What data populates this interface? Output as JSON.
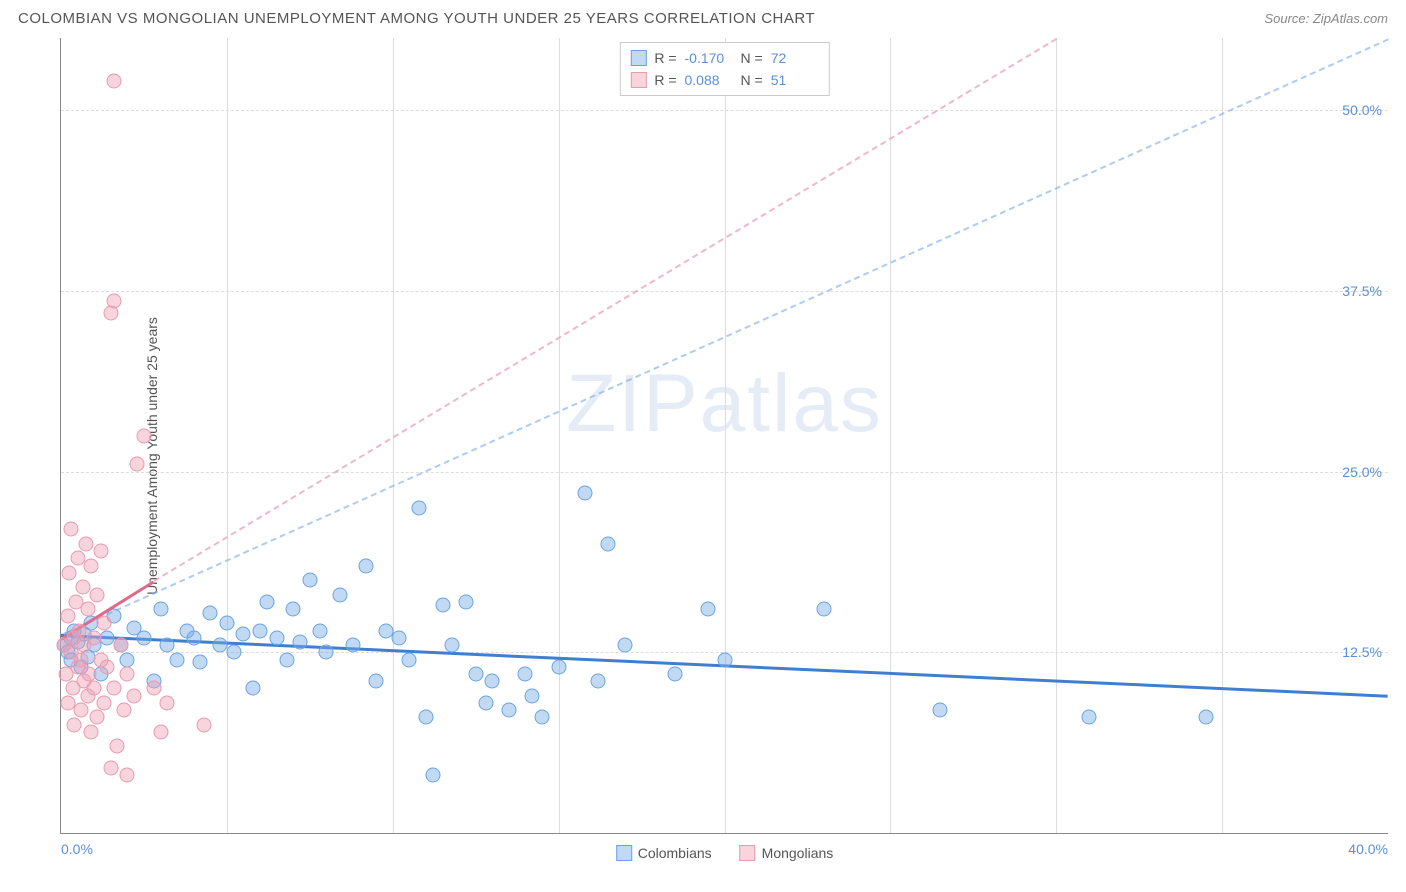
{
  "header": {
    "title": "COLOMBIAN VS MONGOLIAN UNEMPLOYMENT AMONG YOUTH UNDER 25 YEARS CORRELATION CHART",
    "source": "Source: ZipAtlas.com"
  },
  "chart": {
    "type": "scatter",
    "ylabel": "Unemployment Among Youth under 25 years",
    "background_color": "#ffffff",
    "grid_color": "#dddddd",
    "axis_color": "#888888",
    "text_color": "#555555",
    "tick_label_color": "#5b8fd6",
    "watermark_text": "ZIPatlas",
    "watermark_color": "rgba(150,180,220,0.25)",
    "xlim": [
      0,
      40
    ],
    "ylim": [
      0,
      55
    ],
    "marker_size": 15,
    "x_ticks": [
      {
        "pos": 0,
        "label": "0.0%"
      },
      {
        "pos": 5,
        "label": ""
      },
      {
        "pos": 10,
        "label": ""
      },
      {
        "pos": 15,
        "label": ""
      },
      {
        "pos": 20,
        "label": ""
      },
      {
        "pos": 25,
        "label": ""
      },
      {
        "pos": 30,
        "label": ""
      },
      {
        "pos": 35,
        "label": ""
      },
      {
        "pos": 40,
        "label": "40.0%"
      }
    ],
    "y_ticks": [
      {
        "pos": 12.5,
        "label": "12.5%"
      },
      {
        "pos": 25.0,
        "label": "25.0%"
      },
      {
        "pos": 37.5,
        "label": "37.5%"
      },
      {
        "pos": 50.0,
        "label": "50.0%"
      }
    ],
    "series": [
      {
        "key": "colombians",
        "label": "Colombians",
        "fill_color": "rgba(120,170,230,0.45)",
        "stroke_color": "#6aa3e0",
        "trend_solid_color": "#3f7fd1",
        "trend_dashed_color": "rgba(120,170,230,0.6)",
        "R": "-0.170",
        "N": "72",
        "trend_solid": {
          "x1": 0,
          "y1": 13.8,
          "x2": 40,
          "y2": 9.6
        },
        "trend_dashed": {
          "x1": 0,
          "y1": 13.8,
          "x2": 40,
          "y2": 55
        },
        "points": [
          [
            0.1,
            13.0
          ],
          [
            0.2,
            12.5
          ],
          [
            0.3,
            13.5
          ],
          [
            0.3,
            12.0
          ],
          [
            0.4,
            14.0
          ],
          [
            0.5,
            13.2
          ],
          [
            0.6,
            11.5
          ],
          [
            0.7,
            13.8
          ],
          [
            0.8,
            12.2
          ],
          [
            0.9,
            14.5
          ],
          [
            1.0,
            13.0
          ],
          [
            1.2,
            11.0
          ],
          [
            1.4,
            13.5
          ],
          [
            1.6,
            15.0
          ],
          [
            1.8,
            13.0
          ],
          [
            2.0,
            12.0
          ],
          [
            2.2,
            14.2
          ],
          [
            2.5,
            13.5
          ],
          [
            2.8,
            10.5
          ],
          [
            3.0,
            15.5
          ],
          [
            3.2,
            13.0
          ],
          [
            3.5,
            12.0
          ],
          [
            3.8,
            14.0
          ],
          [
            4.0,
            13.5
          ],
          [
            4.2,
            11.8
          ],
          [
            4.5,
            15.2
          ],
          [
            4.8,
            13.0
          ],
          [
            5.0,
            14.5
          ],
          [
            5.2,
            12.5
          ],
          [
            5.5,
            13.8
          ],
          [
            5.8,
            10.0
          ],
          [
            6.0,
            14.0
          ],
          [
            6.2,
            16.0
          ],
          [
            6.5,
            13.5
          ],
          [
            6.8,
            12.0
          ],
          [
            7.0,
            15.5
          ],
          [
            7.2,
            13.2
          ],
          [
            7.5,
            17.5
          ],
          [
            7.8,
            14.0
          ],
          [
            8.0,
            12.5
          ],
          [
            8.4,
            16.5
          ],
          [
            8.8,
            13.0
          ],
          [
            9.2,
            18.5
          ],
          [
            9.5,
            10.5
          ],
          [
            9.8,
            14.0
          ],
          [
            10.2,
            13.5
          ],
          [
            10.5,
            12.0
          ],
          [
            10.8,
            22.5
          ],
          [
            11.0,
            8.0
          ],
          [
            11.2,
            4.0
          ],
          [
            11.5,
            15.8
          ],
          [
            11.8,
            13.0
          ],
          [
            12.2,
            16.0
          ],
          [
            12.5,
            11.0
          ],
          [
            12.8,
            9.0
          ],
          [
            13.0,
            10.5
          ],
          [
            13.5,
            8.5
          ],
          [
            14.0,
            11.0
          ],
          [
            14.2,
            9.5
          ],
          [
            14.5,
            8.0
          ],
          [
            15.0,
            11.5
          ],
          [
            15.8,
            23.5
          ],
          [
            16.2,
            10.5
          ],
          [
            16.5,
            20.0
          ],
          [
            17.0,
            13.0
          ],
          [
            18.5,
            11.0
          ],
          [
            19.5,
            15.5
          ],
          [
            20.0,
            12.0
          ],
          [
            23.0,
            15.5
          ],
          [
            26.5,
            8.5
          ],
          [
            31.0,
            8.0
          ],
          [
            34.5,
            8.0
          ]
        ]
      },
      {
        "key": "mongolians",
        "label": "Mongolians",
        "fill_color": "rgba(240,160,180,0.45)",
        "stroke_color": "#e89ab0",
        "trend_solid_color": "#e06a8c",
        "trend_dashed_color": "rgba(232,154,176,0.7)",
        "R": "0.088",
        "N": "51",
        "trend_solid": {
          "x1": 0,
          "y1": 13.5,
          "x2": 2.8,
          "y2": 17.5
        },
        "trend_dashed": {
          "x1": 2.8,
          "y1": 17.5,
          "x2": 30,
          "y2": 55
        },
        "points": [
          [
            0.1,
            13.0
          ],
          [
            0.15,
            11.0
          ],
          [
            0.2,
            15.0
          ],
          [
            0.2,
            9.0
          ],
          [
            0.25,
            18.0
          ],
          [
            0.3,
            12.5
          ],
          [
            0.3,
            21.0
          ],
          [
            0.35,
            10.0
          ],
          [
            0.4,
            13.5
          ],
          [
            0.4,
            7.5
          ],
          [
            0.45,
            16.0
          ],
          [
            0.5,
            11.5
          ],
          [
            0.5,
            19.0
          ],
          [
            0.55,
            14.0
          ],
          [
            0.6,
            8.5
          ],
          [
            0.6,
            12.0
          ],
          [
            0.65,
            17.0
          ],
          [
            0.7,
            10.5
          ],
          [
            0.7,
            13.0
          ],
          [
            0.75,
            20.0
          ],
          [
            0.8,
            9.5
          ],
          [
            0.8,
            15.5
          ],
          [
            0.85,
            11.0
          ],
          [
            0.9,
            18.5
          ],
          [
            0.9,
            7.0
          ],
          [
            1.0,
            13.5
          ],
          [
            1.0,
            10.0
          ],
          [
            1.1,
            16.5
          ],
          [
            1.1,
            8.0
          ],
          [
            1.2,
            12.0
          ],
          [
            1.2,
            19.5
          ],
          [
            1.3,
            9.0
          ],
          [
            1.3,
            14.5
          ],
          [
            1.4,
            11.5
          ],
          [
            1.5,
            4.5
          ],
          [
            1.5,
            36.0
          ],
          [
            1.6,
            10.0
          ],
          [
            1.6,
            36.8
          ],
          [
            1.6,
            52.0
          ],
          [
            1.7,
            6.0
          ],
          [
            1.8,
            13.0
          ],
          [
            1.9,
            8.5
          ],
          [
            2.0,
            11.0
          ],
          [
            2.0,
            4.0
          ],
          [
            2.2,
            9.5
          ],
          [
            2.3,
            25.5
          ],
          [
            2.5,
            27.5
          ],
          [
            2.8,
            10.0
          ],
          [
            3.0,
            7.0
          ],
          [
            3.2,
            9.0
          ],
          [
            4.3,
            7.5
          ]
        ]
      }
    ],
    "stats_box": {
      "r_label": "R =",
      "n_label": "N ="
    },
    "legend_label_colombians": "Colombians",
    "legend_label_mongolians": "Mongolians"
  }
}
